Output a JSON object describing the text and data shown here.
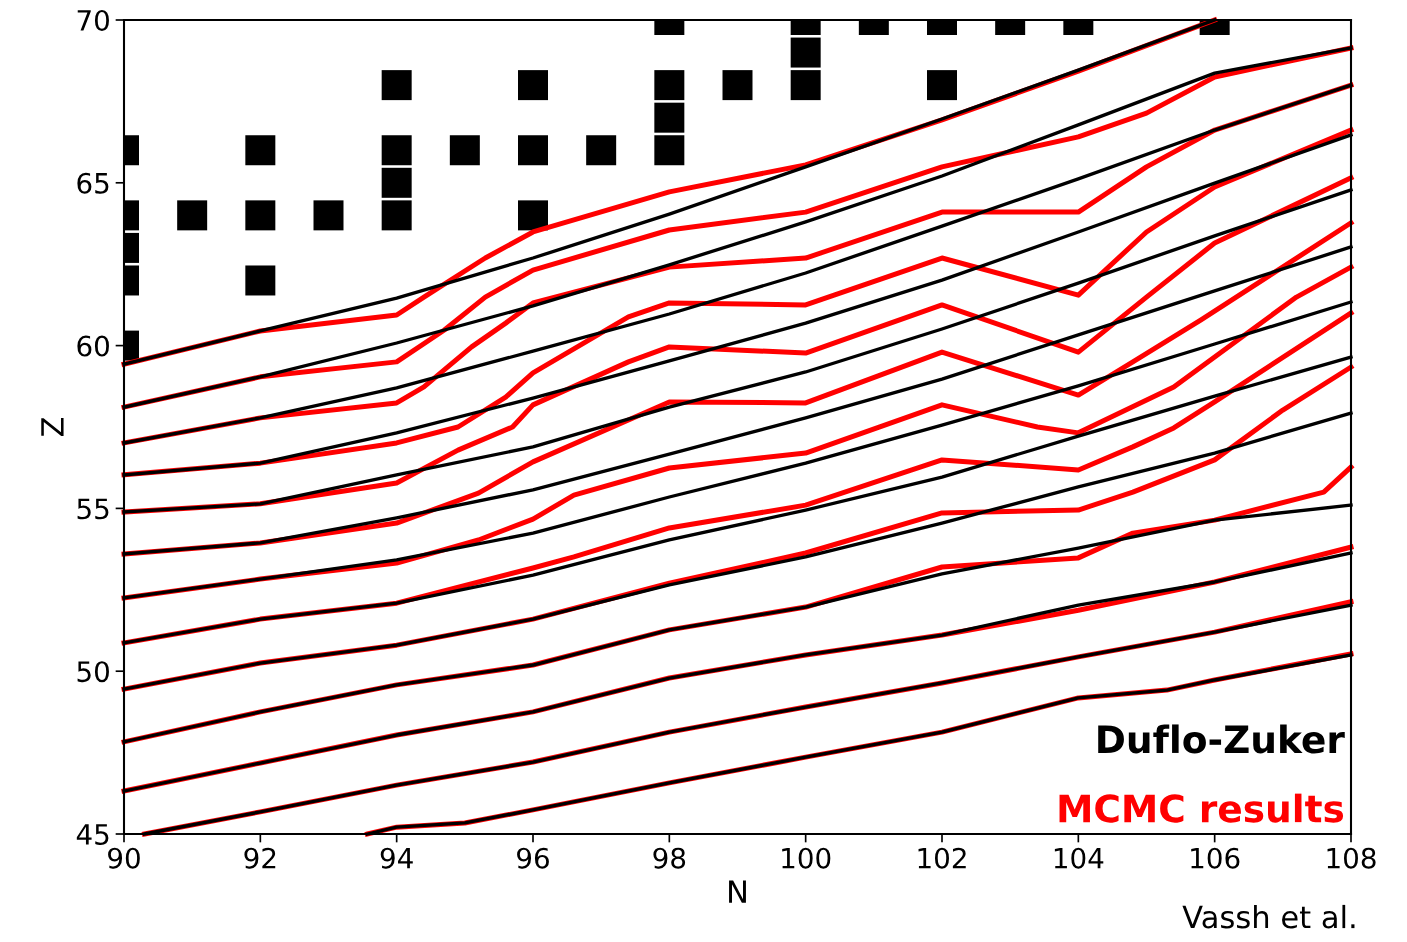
{
  "chart_data": {
    "type": "line",
    "xlabel": "N",
    "ylabel": "Z",
    "xlim": [
      90,
      108
    ],
    "ylim": [
      45,
      70
    ],
    "xticks": [
      90,
      92,
      94,
      96,
      98,
      100,
      102,
      104,
      106,
      108
    ],
    "yticks": [
      45,
      50,
      55,
      60,
      65,
      70
    ],
    "x": [
      90,
      92,
      94,
      96,
      98,
      100,
      102,
      104,
      106,
      108
    ],
    "annotations": [
      "Vassh et al."
    ],
    "series": [
      {
        "name": "MCMC results",
        "color": "#ff0000",
        "x": [
          90,
          92,
          94,
          94.4,
          95.3,
          96,
          98,
          100,
          102,
          104,
          106
        ],
        "values": [
          59.43,
          60.45,
          60.94,
          61.49,
          62.69,
          63.49,
          64.72,
          65.55,
          66.93,
          68.43,
          70.0
        ]
      },
      {
        "color": "#ff0000",
        "x": [
          90,
          92,
          94,
          94.7,
          95.3,
          96,
          98,
          100,
          102,
          104,
          105,
          106,
          108
        ],
        "values": [
          58.11,
          59.04,
          59.5,
          60.48,
          61.49,
          62.32,
          63.55,
          64.1,
          65.49,
          66.41,
          67.14,
          68.25,
          69.14
        ]
      },
      {
        "color": "#ff0000",
        "x": [
          90,
          92,
          94,
          94.4,
          95.1,
          95.6,
          96,
          98,
          100,
          102,
          104,
          105,
          106,
          108
        ],
        "values": [
          57.01,
          57.78,
          58.24,
          58.73,
          59.96,
          60.69,
          61.31,
          62.41,
          62.69,
          64.1,
          64.1,
          65.49,
          66.62,
          68.0
        ]
      },
      {
        "color": "#ff0000",
        "x": [
          90,
          92,
          94,
          94.9,
          95.6,
          96,
          97.4,
          98,
          100,
          102,
          104,
          105,
          106,
          108
        ],
        "values": [
          56.03,
          56.39,
          57.01,
          57.5,
          58.42,
          59.16,
          60.88,
          61.31,
          61.25,
          62.69,
          61.55,
          63.49,
          64.87,
          66.62
        ]
      },
      {
        "color": "#ff0000",
        "x": [
          90,
          92,
          94,
          94.9,
          95.7,
          96,
          97.4,
          98,
          100,
          102,
          104,
          105,
          106,
          108
        ],
        "values": [
          54.89,
          55.14,
          55.78,
          56.79,
          57.5,
          58.18,
          59.5,
          59.96,
          59.77,
          61.25,
          59.8,
          61.49,
          63.15,
          65.15
        ]
      },
      {
        "color": "#ff0000",
        "x": [
          90,
          92,
          94,
          95.2,
          96,
          98,
          100,
          102,
          104,
          104.8,
          105.8,
          108
        ],
        "values": [
          53.6,
          53.94,
          54.55,
          55.47,
          56.43,
          58.27,
          58.24,
          59.8,
          58.48,
          59.5,
          60.79,
          63.77
        ]
      },
      {
        "color": "#ff0000",
        "x": [
          90,
          92,
          94,
          95.2,
          96,
          96.6,
          98,
          100,
          102,
          103.4,
          104,
          105.4,
          106,
          107.2,
          108
        ],
        "values": [
          52.25,
          52.83,
          53.32,
          54.03,
          54.67,
          55.41,
          56.24,
          56.7,
          58.18,
          57.5,
          57.32,
          58.73,
          59.65,
          61.49,
          62.41
        ]
      },
      {
        "color": "#ff0000",
        "x": [
          90,
          92,
          94,
          96,
          96.6,
          98,
          100,
          102,
          104,
          104.8,
          105.4,
          106,
          108
        ],
        "values": [
          50.87,
          51.6,
          52.09,
          53.17,
          53.51,
          54.4,
          55.1,
          56.49,
          56.18,
          56.89,
          57.47,
          58.27,
          61.0
        ]
      },
      {
        "color": "#ff0000",
        "x": [
          90,
          92,
          94,
          96,
          98,
          100,
          102,
          104,
          104.8,
          106,
          107,
          108
        ],
        "values": [
          49.45,
          50.25,
          50.8,
          51.6,
          52.7,
          53.63,
          54.86,
          54.95,
          55.5,
          56.49,
          58.02,
          59.34
        ]
      },
      {
        "color": "#ff0000",
        "x": [
          90,
          92,
          94,
          96,
          98,
          100,
          102,
          104,
          104.8,
          106,
          107.6,
          108
        ],
        "values": [
          47.83,
          48.75,
          49.58,
          50.19,
          51.27,
          51.97,
          53.2,
          53.48,
          54.24,
          54.64,
          55.5,
          56.27
        ]
      },
      {
        "color": "#ff0000",
        "values": [
          46.32,
          47.18,
          48.04,
          48.75,
          49.79,
          50.5,
          51.11,
          51.87,
          52.74,
          53.81
        ]
      },
      {
        "color": "#ff0000",
        "x": [
          90.3,
          92,
          94,
          96,
          98,
          100,
          102,
          104,
          106,
          108
        ],
        "values": [
          45.0,
          45.68,
          46.5,
          47.21,
          48.13,
          48.9,
          49.64,
          50.44,
          51.2,
          52.13
        ]
      },
      {
        "color": "#ff0000",
        "x": [
          93.57,
          94,
          95,
          96,
          98,
          100,
          102,
          104,
          105.3,
          106,
          108
        ],
        "values": [
          45.0,
          45.21,
          45.34,
          45.74,
          46.57,
          47.36,
          48.13,
          49.18,
          49.42,
          49.73,
          50.53
        ]
      },
      {
        "name": "Duflo-Zuker",
        "color": "#000000",
        "x": [
          90,
          92,
          94,
          96,
          98,
          100,
          102,
          104,
          106
        ],
        "values": [
          59.43,
          60.45,
          61.46,
          62.69,
          64.04,
          65.49,
          66.96,
          68.46,
          70.0
        ]
      },
      {
        "color": "#000000",
        "values": [
          58.11,
          59.04,
          60.08,
          61.22,
          62.48,
          63.8,
          65.21,
          66.78,
          68.37,
          69.14
        ]
      },
      {
        "color": "#000000",
        "values": [
          57.01,
          57.78,
          58.7,
          59.83,
          60.97,
          62.23,
          63.67,
          65.12,
          66.62,
          68.0
        ]
      },
      {
        "color": "#000000",
        "values": [
          56.03,
          56.39,
          57.32,
          58.39,
          59.53,
          60.69,
          62.01,
          63.49,
          64.99,
          66.47
        ]
      },
      {
        "color": "#000000",
        "values": [
          54.89,
          55.14,
          56.03,
          56.89,
          58.11,
          59.19,
          60.51,
          61.92,
          63.37,
          64.78
        ]
      },
      {
        "color": "#000000",
        "values": [
          53.6,
          53.94,
          54.71,
          55.57,
          56.67,
          57.78,
          58.97,
          60.33,
          61.68,
          63.03
        ]
      },
      {
        "color": "#000000",
        "values": [
          52.25,
          52.83,
          53.42,
          54.24,
          55.35,
          56.39,
          57.56,
          58.76,
          60.05,
          61.34
        ]
      },
      {
        "color": "#000000",
        "values": [
          50.87,
          51.6,
          52.09,
          52.95,
          54.03,
          54.95,
          55.96,
          57.22,
          58.45,
          59.65
        ]
      },
      {
        "color": "#000000",
        "values": [
          49.45,
          50.25,
          50.8,
          51.6,
          52.65,
          53.51,
          54.55,
          55.66,
          56.7,
          57.93
        ]
      },
      {
        "color": "#000000",
        "values": [
          47.83,
          48.75,
          49.58,
          50.19,
          51.27,
          51.97,
          52.99,
          53.78,
          54.64,
          55.1
        ]
      },
      {
        "color": "#000000",
        "values": [
          46.32,
          47.18,
          48.04,
          48.75,
          49.79,
          50.5,
          51.11,
          52.03,
          52.74,
          53.63
        ]
      },
      {
        "color": "#000000",
        "x": [
          90.3,
          92,
          94,
          96,
          98,
          100,
          102,
          104,
          106,
          108
        ],
        "values": [
          45.0,
          45.68,
          46.5,
          47.21,
          48.13,
          48.9,
          49.64,
          50.44,
          51.2,
          52.03
        ]
      },
      {
        "color": "#000000",
        "x": [
          93.57,
          94,
          95,
          96,
          98,
          100,
          102,
          104,
          105.3,
          106,
          108
        ],
        "values": [
          45.0,
          45.21,
          45.34,
          45.74,
          46.57,
          47.36,
          48.13,
          49.18,
          49.42,
          49.73,
          50.5
        ]
      },
      {
        "type": "scatter",
        "marker": "square",
        "color": "#000000",
        "x": [
          98,
          100,
          101,
          102,
          103,
          104,
          106,
          100,
          94,
          96,
          98,
          99,
          100,
          102,
          98,
          90,
          92,
          94,
          95,
          96,
          97,
          98,
          94,
          90,
          91,
          92,
          93,
          94,
          96,
          90,
          90,
          92,
          90
        ],
        "values": [
          70,
          70,
          70,
          70,
          70,
          70,
          70,
          69,
          68,
          68,
          68,
          68,
          68,
          68,
          67,
          66,
          66,
          66,
          66,
          66,
          66,
          66,
          65,
          64,
          64,
          64,
          64,
          64,
          64,
          63,
          62,
          62,
          60
        ]
      }
    ]
  }
}
